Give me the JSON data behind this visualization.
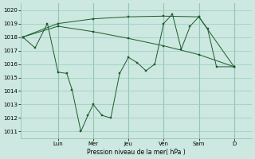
{
  "background_color": "#cce8e0",
  "grid_color": "#99ccbb",
  "line_color": "#1a5c2a",
  "ylabel": "Pression niveau de la mer( hPa )",
  "ylim": [
    1010.5,
    1020.5
  ],
  "yticks": [
    1011,
    1012,
    1013,
    1014,
    1015,
    1016,
    1017,
    1018,
    1019,
    1020
  ],
  "day_labels": [
    "Lun",
    "Mer",
    "Jeu",
    "Ven",
    "Sam",
    "D"
  ],
  "day_positions": [
    2,
    4,
    6,
    8,
    10,
    12
  ],
  "xlim": [
    -0.1,
    13.0
  ],
  "series1_x": [
    0,
    2,
    4,
    6,
    8,
    10,
    12
  ],
  "series1_y": [
    1018.0,
    1019.0,
    1019.35,
    1019.5,
    1019.55,
    1019.5,
    1015.8
  ],
  "series2_x": [
    0,
    2,
    4,
    6,
    8,
    10,
    12
  ],
  "series2_y": [
    1018.0,
    1018.8,
    1018.4,
    1017.9,
    1017.35,
    1016.7,
    1015.8
  ],
  "series3_x": [
    0,
    0.7,
    1.4,
    2.0,
    2.5,
    2.8,
    3.3,
    3.7,
    4.0,
    4.5,
    5.0,
    5.5,
    6.0,
    6.5,
    7.0,
    7.5,
    8.0,
    8.5,
    9.0,
    9.5,
    10.0,
    10.5,
    11.0,
    12.0
  ],
  "series3_y": [
    1018.0,
    1017.2,
    1019.0,
    1015.4,
    1015.3,
    1014.1,
    1011.0,
    1012.2,
    1013.0,
    1012.2,
    1012.0,
    1015.3,
    1016.5,
    1016.1,
    1015.5,
    1016.0,
    1019.0,
    1019.7,
    1017.1,
    1018.8,
    1019.5,
    1018.6,
    1015.8,
    1015.8
  ]
}
